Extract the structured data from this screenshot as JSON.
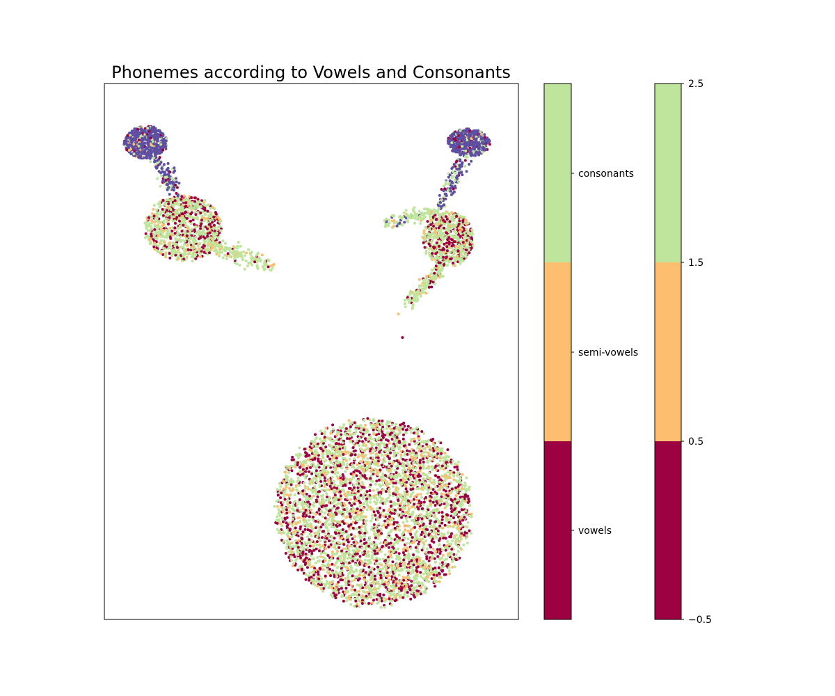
{
  "chart_data": {
    "type": "scatter",
    "title": "Phonemes according to Vowels and Consonants",
    "xlabel": "",
    "ylabel": "",
    "axis_ticks_visible": false,
    "categories": [
      "vowels",
      "semi-vowels",
      "consonants"
    ],
    "colors": {
      "vowels": "#9e0142",
      "semi-vowels": "#fdbe6f",
      "consonants": "#bfe49c",
      "other": "#5e4fa2"
    },
    "clusters": [
      {
        "name": "upper-left head",
        "center": [
          0.1,
          0.89
        ],
        "radius": [
          0.05,
          0.03
        ],
        "mix": {
          "other": 0.78,
          "consonants": 0.1,
          "vowels": 0.08,
          "semi-vowels": 0.04
        }
      },
      {
        "name": "upper-left body",
        "center": [
          0.19,
          0.73
        ],
        "radius": [
          0.09,
          0.06
        ],
        "mix": {
          "consonants": 0.6,
          "vowels": 0.28,
          "semi-vowels": 0.12
        }
      },
      {
        "name": "upper-right head",
        "center": [
          0.88,
          0.89
        ],
        "radius": [
          0.05,
          0.025
        ],
        "mix": {
          "other": 0.8,
          "consonants": 0.08,
          "vowels": 0.08,
          "semi-vowels": 0.04
        }
      },
      {
        "name": "upper-right body",
        "center": [
          0.83,
          0.71
        ],
        "radius": [
          0.06,
          0.05
        ],
        "mix": {
          "consonants": 0.6,
          "vowels": 0.28,
          "semi-vowels": 0.12
        }
      },
      {
        "name": "lower-right ellipse",
        "center": [
          0.65,
          0.2
        ],
        "radius": [
          0.23,
          0.17
        ],
        "mix": {
          "consonants": 0.52,
          "vowels": 0.33,
          "semi-vowels": 0.15
        }
      }
    ],
    "colorbar_categorical": {
      "tick_labels": [
        "vowels",
        "semi-vowels",
        "consonants"
      ]
    },
    "colorbar_numeric": {
      "range": [
        -0.5,
        2.5
      ],
      "ticks": [
        2.5,
        1.5,
        0.5,
        -0.5
      ],
      "tick_labels": [
        "2.5",
        "1.5",
        "0.5",
        "−0.5"
      ]
    }
  }
}
